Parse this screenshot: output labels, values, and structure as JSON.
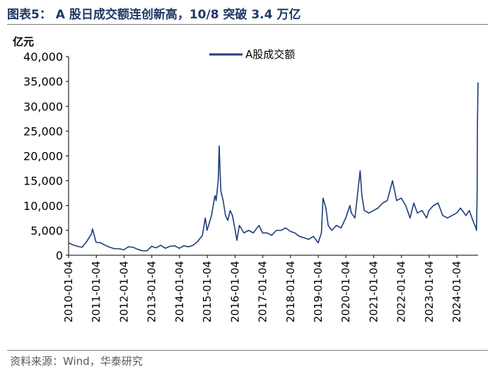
{
  "header": {
    "title": "图表5： A 股日成交额连创新高，10/8 突破 3.4 万亿"
  },
  "footer": {
    "source": "资料来源：Wind，华泰研究"
  },
  "colors": {
    "series": "#1f3d7a",
    "title": "#1f3864",
    "axis": "#000000"
  },
  "chart_data": {
    "type": "line",
    "title": "",
    "xlabel": "",
    "ylabel": "亿元",
    "ylim": [
      0,
      40000
    ],
    "yticks": [
      0,
      5000,
      10000,
      15000,
      20000,
      25000,
      30000,
      35000,
      40000
    ],
    "ytick_labels": [
      "0",
      "5,000",
      "10,000",
      "15,000",
      "20,000",
      "25,000",
      "30,000",
      "35,000",
      "40,000"
    ],
    "xlim": [
      "2010-01-04",
      "2024-10-08"
    ],
    "xticks": [
      "2010-01-04",
      "2011-01-04",
      "2012-01-04",
      "2013-01-04",
      "2014-01-04",
      "2015-01-04",
      "2016-01-04",
      "2017-01-04",
      "2018-01-04",
      "2019-01-04",
      "2020-01-04",
      "2021-01-04",
      "2022-01-04",
      "2023-01-04",
      "2024-01-04"
    ],
    "grid": false,
    "legend_position": "top-center",
    "series": [
      {
        "name": "A股成交额",
        "x": [
          "2010-01-04",
          "2010-03-01",
          "2010-05-01",
          "2010-07-01",
          "2010-09-01",
          "2010-11-01",
          "2010-11-15",
          "2011-01-01",
          "2011-03-01",
          "2011-05-01",
          "2011-07-01",
          "2011-09-01",
          "2011-11-01",
          "2012-01-04",
          "2012-03-01",
          "2012-05-01",
          "2012-07-01",
          "2012-09-01",
          "2012-11-01",
          "2013-01-01",
          "2013-03-01",
          "2013-05-01",
          "2013-07-01",
          "2013-09-01",
          "2013-11-01",
          "2014-01-01",
          "2014-03-01",
          "2014-05-01",
          "2014-07-01",
          "2014-09-01",
          "2014-11-01",
          "2014-12-09",
          "2015-01-01",
          "2015-03-01",
          "2015-04-15",
          "2015-05-01",
          "2015-05-28",
          "2015-06-10",
          "2015-07-01",
          "2015-08-01",
          "2015-09-01",
          "2015-10-01",
          "2015-11-01",
          "2015-12-01",
          "2016-01-01",
          "2016-01-29",
          "2016-03-01",
          "2016-05-01",
          "2016-07-01",
          "2016-09-01",
          "2016-11-15",
          "2017-01-01",
          "2017-03-01",
          "2017-05-01",
          "2017-07-01",
          "2017-09-01",
          "2017-11-01",
          "2018-01-01",
          "2018-03-01",
          "2018-05-01",
          "2018-07-01",
          "2018-09-01",
          "2018-11-01",
          "2019-01-03",
          "2019-02-15",
          "2019-03-08",
          "2019-04-15",
          "2019-05-15",
          "2019-07-01",
          "2019-09-01",
          "2019-11-01",
          "2020-01-01",
          "2020-02-25",
          "2020-03-15",
          "2020-05-01",
          "2020-07-09",
          "2020-08-01",
          "2020-09-01",
          "2020-11-01",
          "2021-01-01",
          "2021-03-01",
          "2021-05-01",
          "2021-07-01",
          "2021-09-08",
          "2021-11-01",
          "2022-01-01",
          "2022-03-01",
          "2022-04-27",
          "2022-06-15",
          "2022-08-01",
          "2022-10-01",
          "2022-12-01",
          "2023-01-01",
          "2023-03-01",
          "2023-05-01",
          "2023-07-01",
          "2023-09-01",
          "2023-11-01",
          "2024-01-01",
          "2024-02-20",
          "2024-03-15",
          "2024-05-01",
          "2024-06-15",
          "2024-08-01",
          "2024-09-10",
          "2024-09-18",
          "2024-09-26",
          "2024-09-30",
          "2024-10-08"
        ],
        "y": [
          2500,
          2100,
          1800,
          1600,
          2800,
          4300,
          5300,
          2600,
          2500,
          2000,
          1600,
          1300,
          1300,
          1100,
          1700,
          1600,
          1200,
          900,
          900,
          1800,
          1500,
          2000,
          1400,
          1800,
          1900,
          1400,
          1900,
          1700,
          2000,
          2800,
          4000,
          7500,
          5000,
          8000,
          12000,
          11000,
          15000,
          22000,
          13000,
          11000,
          8000,
          7000,
          9000,
          8000,
          5500,
          3000,
          6000,
          4500,
          5000,
          4500,
          6000,
          4500,
          4500,
          4000,
          5000,
          5000,
          5500,
          4800,
          4500,
          3800,
          3500,
          3200,
          3800,
          2500,
          4500,
          11500,
          9500,
          6000,
          5000,
          6000,
          5500,
          7500,
          10000,
          8500,
          7500,
          17000,
          12000,
          9000,
          8500,
          9000,
          9500,
          10500,
          11000,
          15000,
          11000,
          11500,
          10000,
          7500,
          10500,
          8500,
          9000,
          7500,
          9000,
          10000,
          10500,
          8000,
          7500,
          8000,
          8500,
          9500,
          9000,
          8000,
          9000,
          7000,
          5500,
          5000,
          12000,
          26000,
          34800
        ]
      }
    ]
  }
}
